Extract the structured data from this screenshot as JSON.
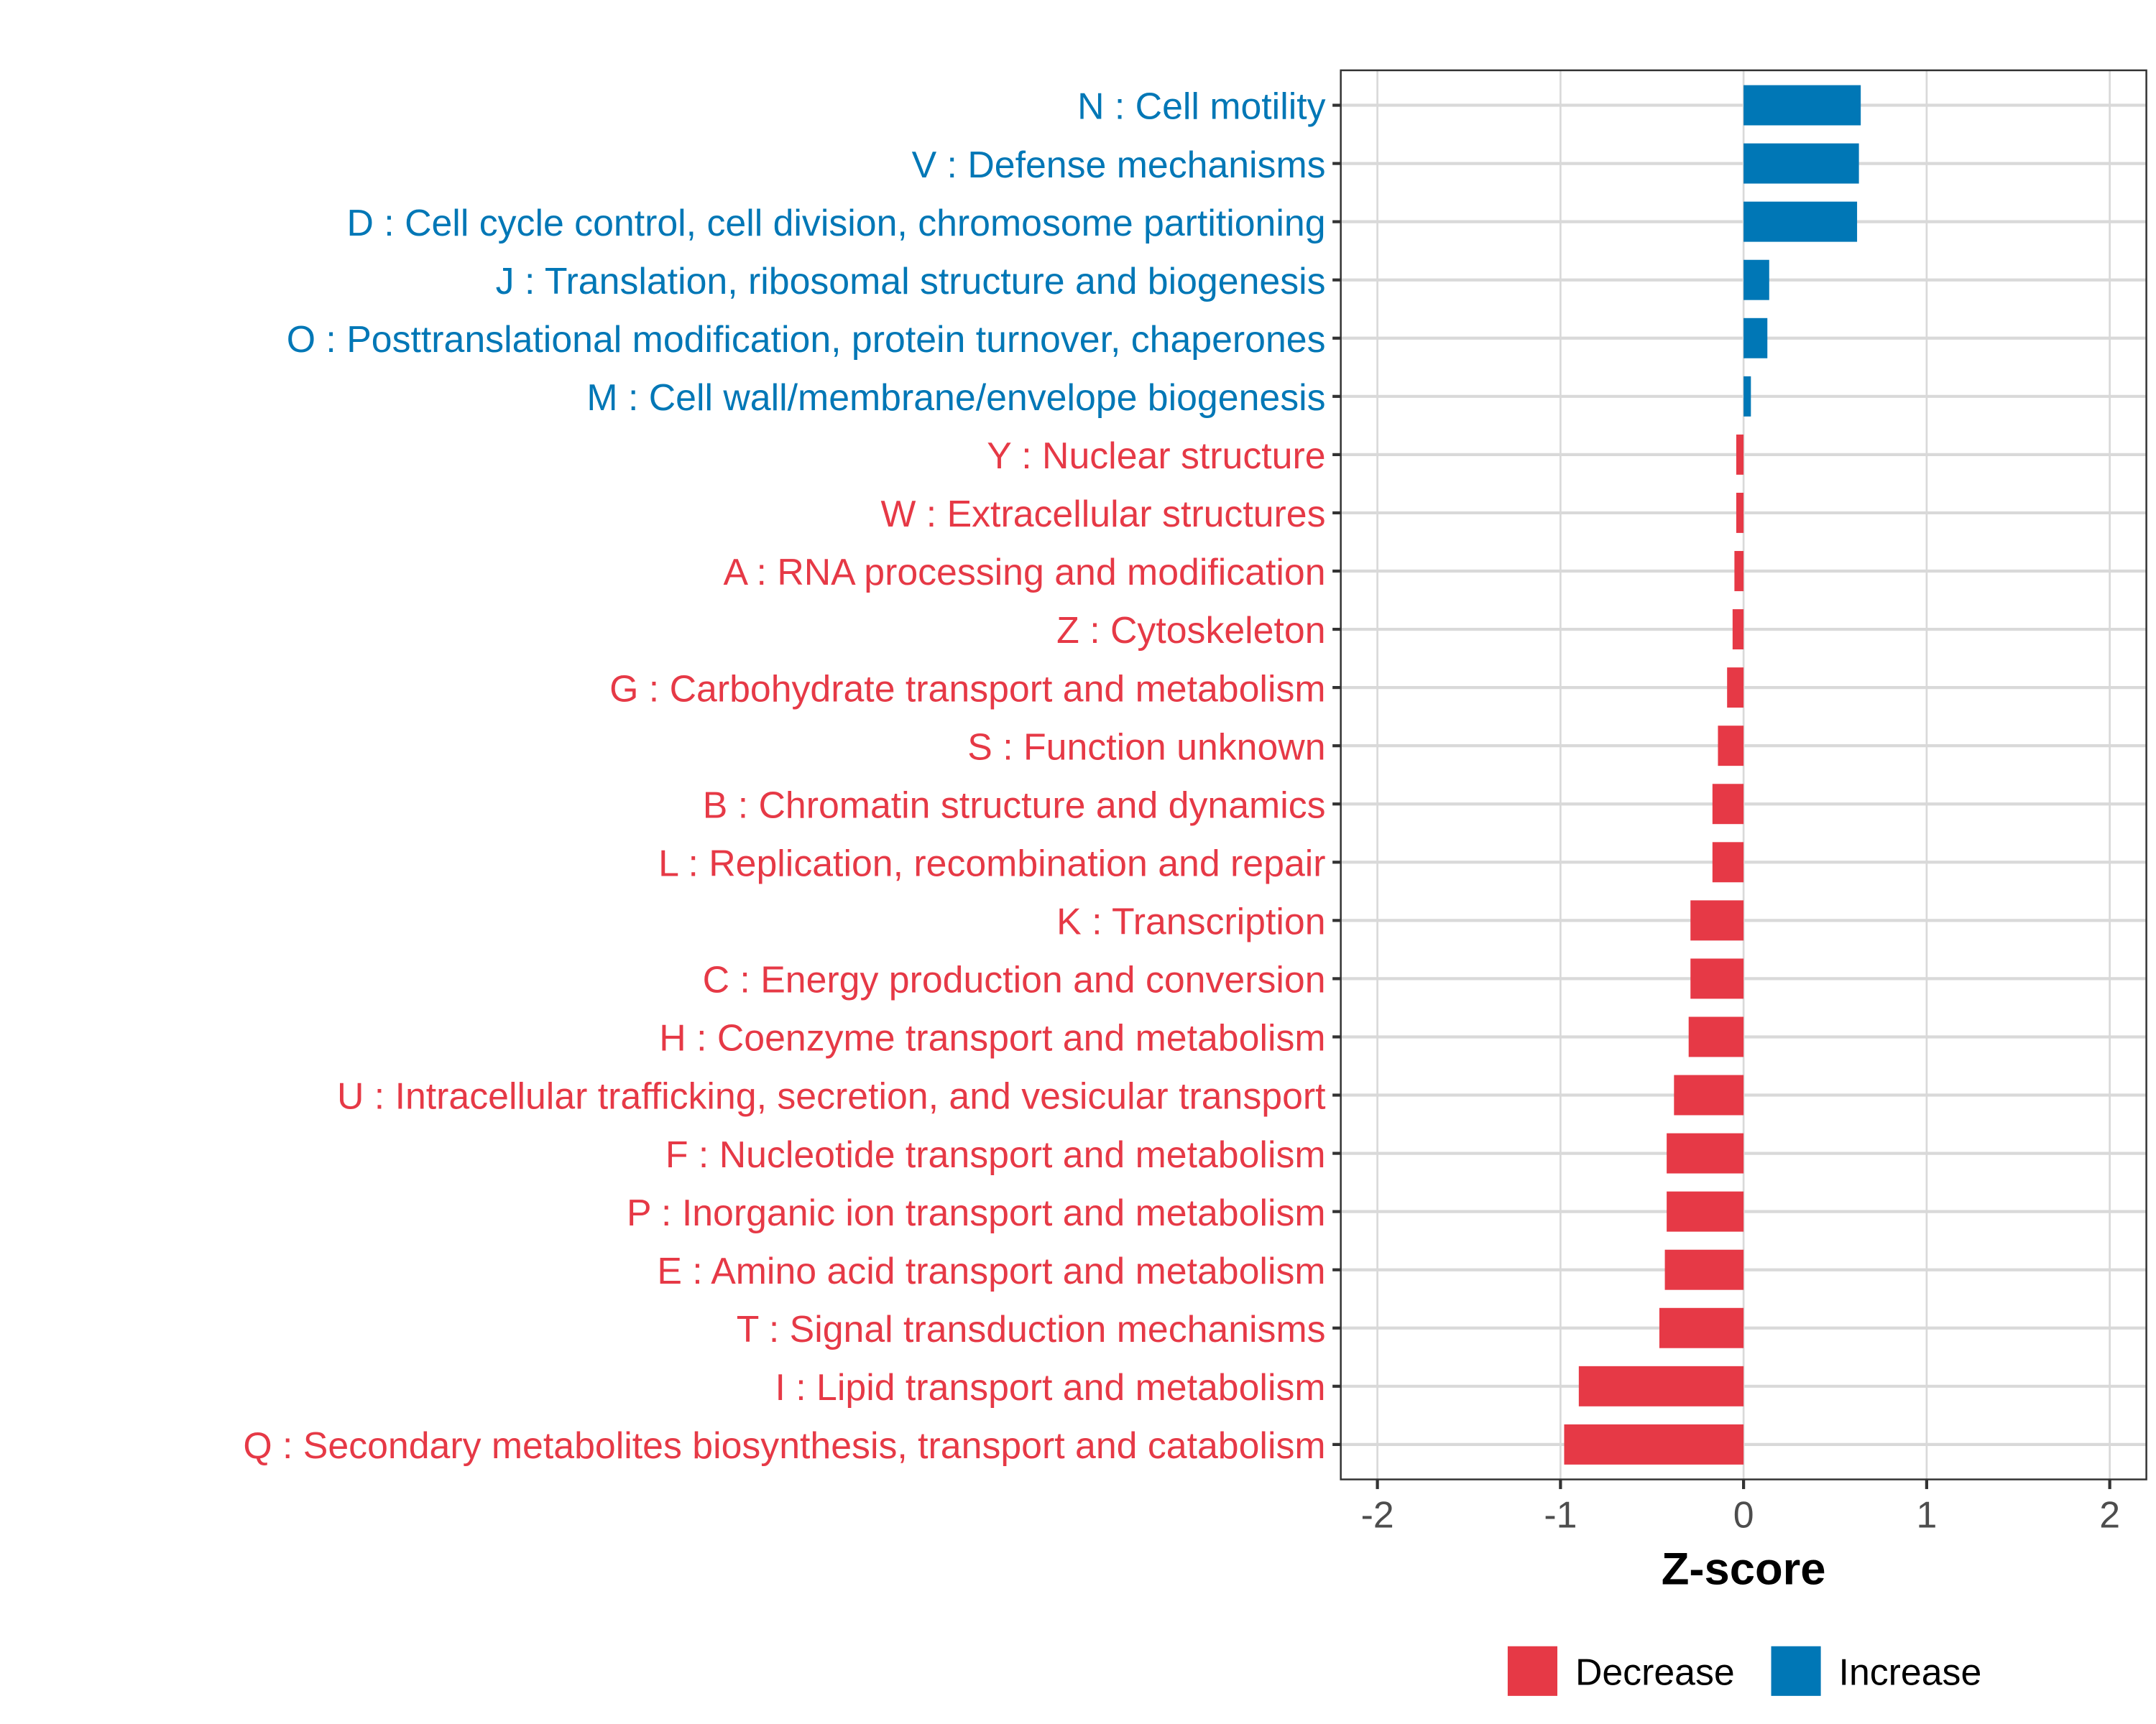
{
  "chart_data": {
    "type": "bar",
    "orientation": "horizontal",
    "title": "",
    "xlabel": "Z-score",
    "ylabel": "",
    "xlim": [
      -2.2,
      2.2
    ],
    "xticks": [
      -2,
      -1,
      0,
      1,
      2
    ],
    "xtick_labels": [
      "-2",
      "-1",
      "0",
      "1",
      "2"
    ],
    "grid": true,
    "legend_position": "bottom",
    "colors": {
      "Decrease": "#e63946",
      "Increase": "#0077b6"
    },
    "legend": [
      {
        "label": "Decrease",
        "color": "#e63946"
      },
      {
        "label": "Increase",
        "color": "#0077b6"
      }
    ],
    "categories": [
      "N : Cell motility",
      "V : Defense mechanisms",
      "D : Cell cycle control, cell division, chromosome partitioning",
      "J : Translation, ribosomal structure and biogenesis",
      "O : Posttranslational modification, protein turnover, chaperones",
      "M : Cell wall/membrane/envelope biogenesis",
      "Y : Nuclear structure",
      "W : Extracellular structures",
      "A : RNA processing and modification",
      "Z : Cytoskeleton",
      "G : Carbohydrate transport and metabolism",
      "S : Function unknown",
      "B : Chromatin structure and dynamics",
      "L : Replication, recombination and repair",
      "K : Transcription",
      "C : Energy production and conversion",
      "H : Coenzyme transport and metabolism",
      "U : Intracellular trafficking, secretion, and vesicular transport",
      "F : Nucleotide transport and metabolism",
      "P : Inorganic ion transport and metabolism",
      "E : Amino acid transport and metabolism",
      "T : Signal transduction mechanisms",
      "I : Lipid transport and metabolism",
      "Q : Secondary metabolites biosynthesis, transport and catabolism"
    ],
    "values": [
      0.64,
      0.63,
      0.62,
      0.14,
      0.13,
      0.04,
      -0.04,
      -0.04,
      -0.05,
      -0.06,
      -0.09,
      -0.14,
      -0.17,
      -0.17,
      -0.29,
      -0.29,
      -0.3,
      -0.38,
      -0.42,
      -0.42,
      -0.43,
      -0.46,
      -0.9,
      -0.98
    ],
    "groups": [
      "Increase",
      "Increase",
      "Increase",
      "Increase",
      "Increase",
      "Increase",
      "Decrease",
      "Decrease",
      "Decrease",
      "Decrease",
      "Decrease",
      "Decrease",
      "Decrease",
      "Decrease",
      "Decrease",
      "Decrease",
      "Decrease",
      "Decrease",
      "Decrease",
      "Decrease",
      "Decrease",
      "Decrease",
      "Decrease",
      "Decrease"
    ]
  }
}
